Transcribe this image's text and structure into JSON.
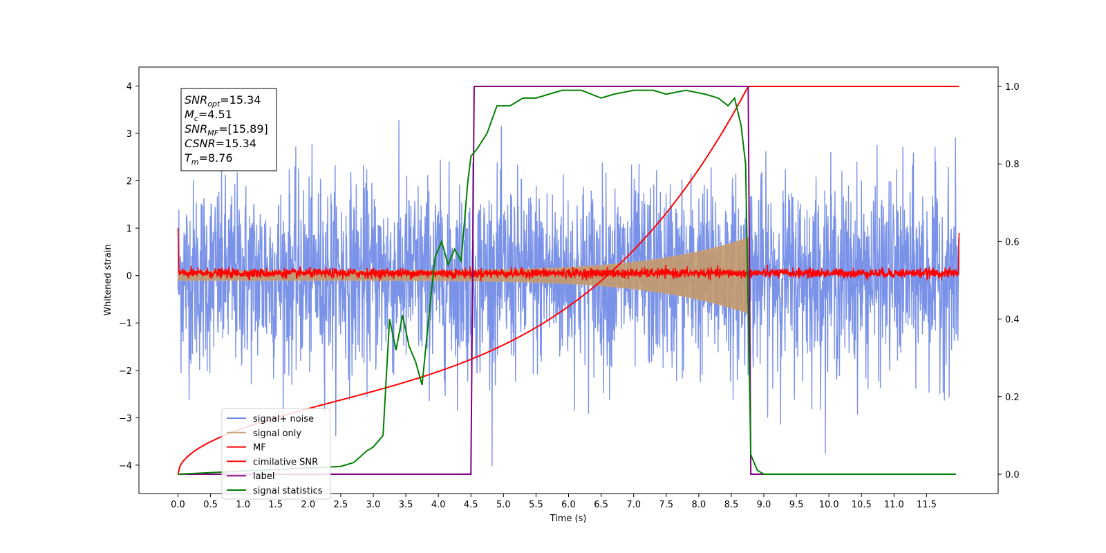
{
  "chart_data": {
    "type": "line",
    "xlabel": "Time (s)",
    "ylabel": "Whitened strain",
    "xlim": [
      -0.6,
      12.6
    ],
    "ylim": [
      -4.6,
      4.4
    ],
    "y2lim": [
      -0.05,
      1.05
    ],
    "x_ticks": [
      "0.0",
      "0.5",
      "1.0",
      "1.5",
      "2.0",
      "2.5",
      "3.0",
      "3.5",
      "4.0",
      "4.5",
      "5.0",
      "5.5",
      "6.0",
      "6.5",
      "7.0",
      "7.5",
      "8.0",
      "8.5",
      "9.0",
      "9.5",
      "10.0",
      "10.5",
      "11.0",
      "11.5"
    ],
    "y_ticks": [
      "4",
      "3",
      "2",
      "1",
      "0",
      "−1",
      "−2",
      "−3",
      "−4"
    ],
    "y2_ticks": [
      "1.0",
      "0.8",
      "0.6",
      "0.4",
      "0.2",
      "0.0"
    ],
    "info_box": {
      "line1_base": "SNR",
      "line1_sub": "opt",
      "line1_value": "=15.34",
      "line2_base": "M",
      "line2_sub": "c",
      "line2_value": "=4.51",
      "line3_base": "SNR",
      "line3_sub": "MF",
      "line3_value": "=[15.89]",
      "line4_base": "CSNR",
      "line4_value": "=15.34",
      "line5_base": "T",
      "line5_sub": "m",
      "line5_value": "=8.76"
    },
    "series": [
      {
        "name": "signal+ noise",
        "color": "#6b86e6",
        "description_values": {
          "noise_std": 1.0,
          "x_range": [
            0.0,
            12.0
          ]
        }
      },
      {
        "name": "signal only",
        "color": "#c9a17c",
        "envelope": {
          "start_t": 0.0,
          "end_t": 8.76,
          "start_amp": 0.1,
          "end_amp": 0.8
        }
      },
      {
        "name": "MF",
        "color": "#ff0000",
        "level": 0.05
      },
      {
        "name": "cimilative SNR",
        "color": "#ff0000",
        "x": [
          0.0,
          0.5,
          1.0,
          1.5,
          2.0,
          2.5,
          3.0,
          3.5,
          4.0,
          4.5,
          5.0,
          5.5,
          6.0,
          6.5,
          7.0,
          7.5,
          8.0,
          8.5,
          8.76,
          8.77,
          12.0
        ],
        "y": [
          0.0,
          0.07,
          0.11,
          0.14,
          0.17,
          0.2,
          0.23,
          0.26,
          0.29,
          0.32,
          0.36,
          0.4,
          0.45,
          0.51,
          0.58,
          0.66,
          0.76,
          0.88,
          1.0,
          1.0,
          1.0
        ]
      },
      {
        "name": "label",
        "color": "#800080",
        "x": [
          0.0,
          4.5,
          4.55,
          8.76,
          8.8,
          11.95
        ],
        "y": [
          0.0,
          0.0,
          1.0,
          1.0,
          0.0,
          0.0
        ]
      },
      {
        "name": "signal statistics",
        "color": "#008000",
        "x": [
          0.0,
          2.5,
          2.7,
          2.9,
          3.0,
          3.15,
          3.25,
          3.35,
          3.45,
          3.55,
          3.65,
          3.75,
          3.85,
          3.95,
          4.05,
          4.15,
          4.25,
          4.35,
          4.45,
          4.5,
          4.6,
          4.75,
          4.9,
          5.1,
          5.3,
          5.5,
          5.7,
          5.9,
          6.2,
          6.5,
          6.7,
          7.0,
          7.3,
          7.5,
          7.8,
          8.1,
          8.3,
          8.45,
          8.55,
          8.65,
          8.72,
          8.8,
          8.9,
          9.0,
          9.5,
          11.95
        ],
        "y": [
          0.0,
          0.02,
          0.03,
          0.06,
          0.07,
          0.1,
          0.4,
          0.32,
          0.41,
          0.33,
          0.29,
          0.23,
          0.4,
          0.56,
          0.6,
          0.54,
          0.58,
          0.55,
          0.75,
          0.82,
          0.84,
          0.88,
          0.95,
          0.95,
          0.97,
          0.97,
          0.98,
          0.99,
          0.99,
          0.97,
          0.98,
          0.99,
          0.99,
          0.98,
          0.99,
          0.98,
          0.97,
          0.95,
          0.97,
          0.9,
          0.8,
          0.05,
          0.01,
          0.0,
          0.0,
          0.0
        ]
      }
    ],
    "legend": {
      "placement": "lower-left",
      "entries": [
        "signal+ noise",
        "signal only",
        "MF",
        "cimilative SNR",
        "label",
        "signal statistics"
      ]
    },
    "grid": false
  }
}
